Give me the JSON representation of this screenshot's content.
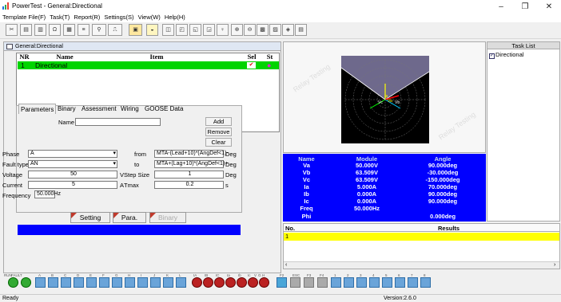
{
  "window": {
    "title": "PowerTest - General:Directional"
  },
  "menu": [
    "Template File(F)",
    "Task(T)",
    "Report(R)",
    "Settings(S)",
    "View(W)",
    "Help(H)"
  ],
  "panel": {
    "header": "General:Directional"
  },
  "table": {
    "headers": {
      "nr": "NR",
      "name": "Name",
      "item": "Item",
      "sel": "Sel",
      "st": "St"
    },
    "rows": [
      {
        "nr": "1",
        "name": "Directional",
        "item": "",
        "sel": "✔",
        "st": "●"
      }
    ]
  },
  "tabs": [
    "Parameters",
    "Binary",
    "Assessment",
    "Wiring",
    "GOOSE Data"
  ],
  "form": {
    "name_label": "Name",
    "name_value": "",
    "add": "Add",
    "remove": "Remove",
    "clear": "Clear",
    "phase_label": "Phase",
    "phase_value": "A",
    "fault_label": "Fault type",
    "fault_value": "AN",
    "voltage_label": "Voltage",
    "voltage_value": "50",
    "voltage_unit": "V",
    "current_label": "Current",
    "current_value": "5",
    "current_unit": "A",
    "freq_label": "Frequency",
    "freq_value": "50.000Hz",
    "from_label": "from",
    "from_value": "MTA-(Lead+10)*(AngDef<1)-",
    "from_unit": "Deg",
    "to_label": "to",
    "to_value": "MTA+(Lag+10)*(AngDef<1)+",
    "to_unit": "Deg",
    "step_label": "Step Size",
    "step_value": "1",
    "step_unit": "Deg",
    "tmax_label": "Tmax",
    "tmax_value": "0.2",
    "tmax_unit": "s"
  },
  "buttons": {
    "setting": "Setting",
    "para": "Para.",
    "binary": "Binary"
  },
  "values": {
    "headers": [
      "Name",
      "Module",
      "Angle"
    ],
    "rows": [
      [
        "Va",
        "50.000V",
        "90.000deg"
      ],
      [
        "Vb",
        "63.509V",
        "-30.000deg"
      ],
      [
        "Vc",
        "63.509V",
        "-150.000deg"
      ],
      [
        "Ia",
        "5.000A",
        "70.000deg"
      ],
      [
        "Ib",
        "0.000A",
        "90.000deg"
      ],
      [
        "Ic",
        "0.000A",
        "90.000deg"
      ],
      [
        "Freq",
        "50.000Hz",
        ""
      ],
      [
        "Phi",
        "",
        "0.000deg"
      ]
    ]
  },
  "polar": {
    "labels": [
      "Ia",
      "Va",
      "Vc",
      "Vb"
    ]
  },
  "tasklist": {
    "title": "Task List",
    "items": [
      "Directional"
    ]
  },
  "results": {
    "col_no": "No.",
    "col_results": "Results",
    "rows": [
      "1"
    ]
  },
  "bottom": {
    "labels": [
      "RUN",
      "FAULT",
      "A",
      "B",
      "C",
      "D",
      "E",
      "F",
      "G",
      "H",
      "I",
      "J",
      "K",
      "L",
      "IA",
      "IB",
      "IC",
      "Ia",
      "Ib",
      "Ic",
      "V",
      "G",
      "H",
      "F2",
      "ESC",
      "F3",
      "F4",
      "1",
      "2",
      "3",
      "4",
      "5",
      "6",
      "7",
      "8"
    ]
  },
  "status": {
    "left": "Ready",
    "version": "Version:2.6.0"
  },
  "colors": {
    "accent_blue": "#0000ff",
    "row_green": "#00d400",
    "results_yellow": "#ffff00"
  },
  "watermark": "Relay Testing"
}
